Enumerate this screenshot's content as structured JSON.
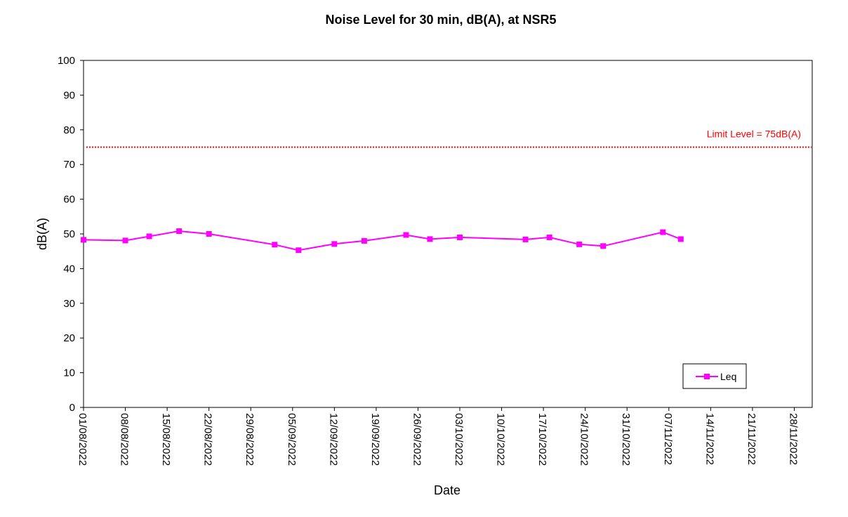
{
  "chart_data": {
    "type": "line",
    "title": "Noise Level for 30 min, dB(A), at NSR5",
    "xlabel": "Date",
    "ylabel": "dB(A)",
    "ylim": [
      0,
      100
    ],
    "yticks": [
      0,
      10,
      20,
      30,
      40,
      50,
      60,
      70,
      80,
      90,
      100
    ],
    "xlim": [
      "2022-08-01",
      "2022-12-01"
    ],
    "xticks": [
      "01/08/2022",
      "08/08/2022",
      "15/08/2022",
      "22/08/2022",
      "29/08/2022",
      "05/09/2022",
      "12/09/2022",
      "19/09/2022",
      "26/09/2022",
      "03/10/2022",
      "10/10/2022",
      "17/10/2022",
      "24/10/2022",
      "31/10/2022",
      "07/11/2022",
      "14/11/2022",
      "21/11/2022",
      "28/11/2022"
    ],
    "grid": false,
    "legend_position": "bottom-right",
    "series": [
      {
        "name": "Leq",
        "color": "#ff00ff",
        "marker": "square",
        "x": [
          "2022-08-01",
          "2022-08-08",
          "2022-08-12",
          "2022-08-17",
          "2022-08-22",
          "2022-09-02",
          "2022-09-06",
          "2022-09-12",
          "2022-09-17",
          "2022-09-24",
          "2022-09-28",
          "2022-10-03",
          "2022-10-14",
          "2022-10-18",
          "2022-10-23",
          "2022-10-27",
          "2022-11-06",
          "2022-11-09"
        ],
        "values": [
          48.3,
          48.1,
          49.3,
          50.8,
          50.0,
          46.9,
          45.3,
          47.1,
          48.0,
          49.7,
          48.5,
          49.0,
          48.4,
          49.0,
          47.0,
          46.5,
          50.5,
          48.5
        ]
      }
    ],
    "reference_line": {
      "value": 75,
      "label": "Limit Level = 75dB(A)",
      "color": "#ff0000",
      "style": "dotted"
    }
  }
}
